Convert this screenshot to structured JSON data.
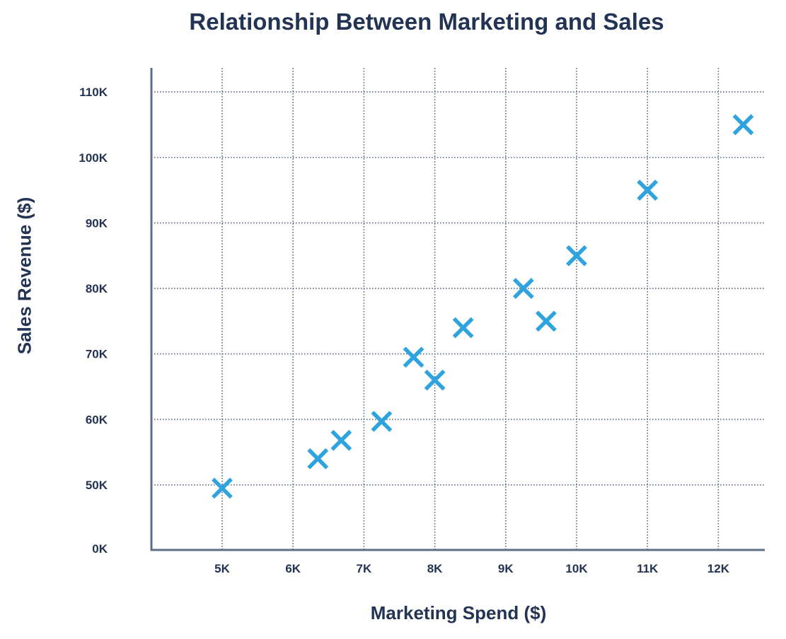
{
  "chart_data": {
    "type": "scatter",
    "title": "Relationship Between Marketing and Sales",
    "xlabel": "Marketing Spend ($)",
    "ylabel": "Sales Revenue ($)",
    "xlim": [
      4000,
      12650
    ],
    "ylim": [
      0,
      115000
    ],
    "x_ticks": [
      5000,
      6000,
      7000,
      8000,
      9000,
      10000,
      11000,
      12000
    ],
    "x_tick_labels": [
      "5K",
      "6K",
      "7K",
      "8K",
      "9K",
      "10K",
      "11K",
      "12K"
    ],
    "y_ticks": [
      0,
      50000,
      60000,
      70000,
      80000,
      90000,
      100000,
      110000
    ],
    "y_tick_labels": [
      "0K",
      "50K",
      "60K",
      "70K",
      "80K",
      "90K",
      "100K",
      "110K"
    ],
    "grid": true,
    "marker": "x",
    "marker_color": "#2ea3de",
    "points": [
      {
        "x": 5000,
        "y": 49500
      },
      {
        "x": 6350,
        "y": 54000
      },
      {
        "x": 6680,
        "y": 56800
      },
      {
        "x": 7250,
        "y": 59700
      },
      {
        "x": 7700,
        "y": 69500
      },
      {
        "x": 8000,
        "y": 66000
      },
      {
        "x": 8400,
        "y": 74000
      },
      {
        "x": 9250,
        "y": 80000
      },
      {
        "x": 9570,
        "y": 75000
      },
      {
        "x": 10000,
        "y": 85000
      },
      {
        "x": 11000,
        "y": 95000
      },
      {
        "x": 12350,
        "y": 105000
      }
    ]
  },
  "colors": {
    "text": "#223354",
    "axis": "#5c6f85",
    "grid": "#5c6f85",
    "marker": "#2ea3de"
  }
}
